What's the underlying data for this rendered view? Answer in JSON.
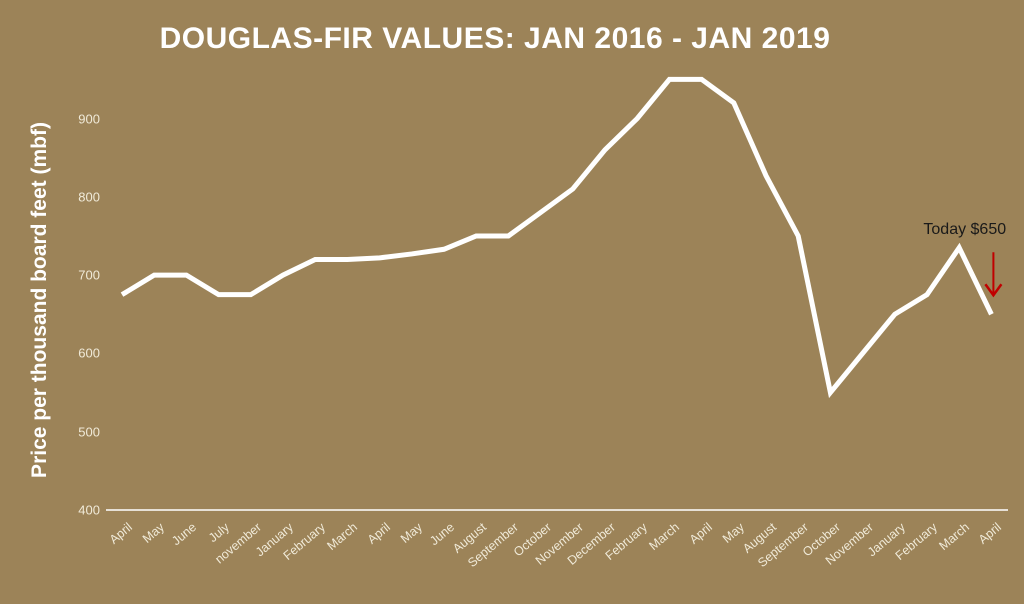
{
  "chart_data": {
    "type": "line",
    "title": "DOUGLAS-FIR VALUES: JAN 2016 - JAN 2019",
    "xlabel": "",
    "ylabel": "Price per thousand board feet (mbf)",
    "ylim": [
      400,
      950
    ],
    "yticks": [
      400,
      500,
      600,
      700,
      800,
      900
    ],
    "grid": false,
    "drop_lines": true,
    "legend": null,
    "categories": [
      "April",
      "May",
      "June",
      "July",
      "november",
      "January",
      "February",
      "March",
      "April",
      "May",
      "June",
      "August",
      "September",
      "October",
      "November",
      "December",
      "February",
      "March",
      "April",
      "May",
      "August",
      "September",
      "October",
      "November",
      "January",
      "February",
      "March",
      "April"
    ],
    "series": [
      {
        "name": "Douglas-fir price",
        "color": "#ffffff",
        "values": [
          675,
          700,
          700,
          675,
          675,
          700,
          720,
          720,
          722,
          727,
          733,
          750,
          750,
          780,
          810,
          860,
          900,
          950,
          950,
          920,
          827,
          750,
          550,
          600,
          650,
          675,
          735,
          650
        ]
      }
    ],
    "annotations": [
      {
        "text": "Today $650",
        "target_index": 27,
        "arrow_color": "#c00000"
      }
    ]
  },
  "colors": {
    "background": "#9c8358",
    "line": "#ffffff",
    "arrow": "#c00000",
    "tick_text": "#f0ead8"
  }
}
